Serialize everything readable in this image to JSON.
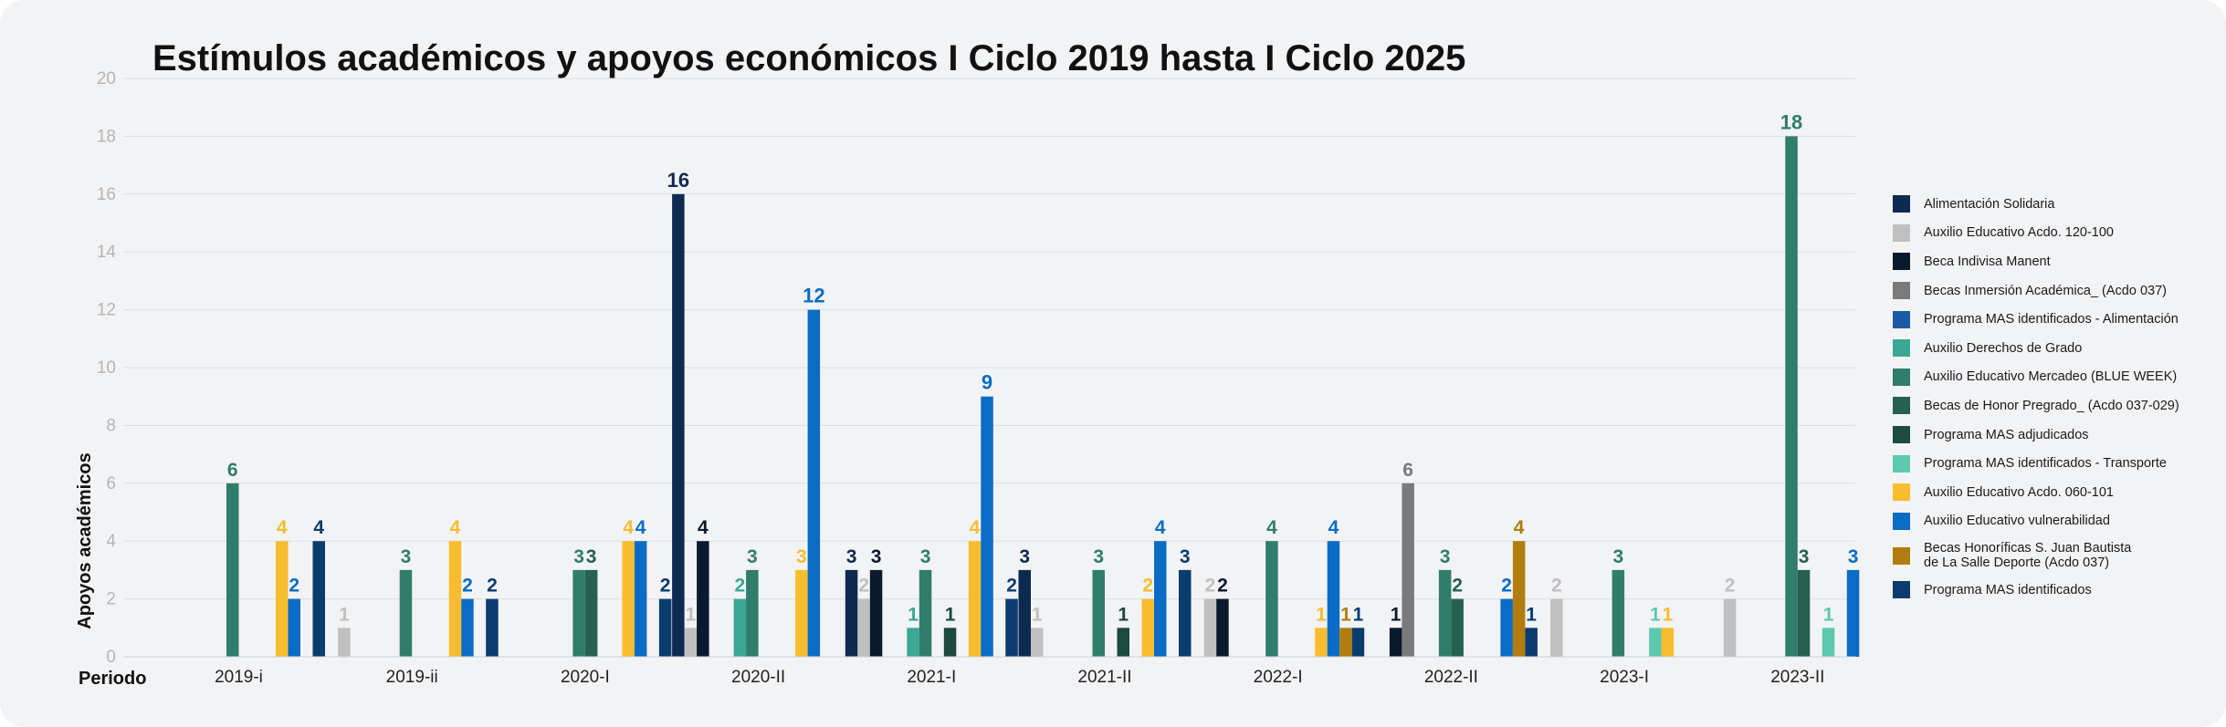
{
  "chart_data": {
    "type": "bar",
    "title": "Estímulos académicos y apoyos económicos I Ciclo 2019 hasta I Ciclo 2025",
    "xlabel": "Periodo",
    "ylabel": "Apoyos académicos",
    "ylim": [
      0,
      20
    ],
    "yticks": [
      0,
      2,
      4,
      6,
      8,
      10,
      12,
      14,
      16,
      18,
      20
    ],
    "grid": true,
    "legend_position": "right",
    "categories": [
      "2019-i",
      "2019-ii",
      "2020-I",
      "2020-II",
      "2021-I",
      "2021-II",
      "2022-I",
      "2022-II",
      "2023-I",
      "2023-II"
    ],
    "series": [
      {
        "name": "Alimentación Solidaria",
        "color": "#0e2a50",
        "values": [
          null,
          null,
          null,
          16,
          3,
          3,
          null,
          null,
          null,
          null
        ]
      },
      {
        "name": " Auxilio Educativo Acdo. 120-100",
        "color": "#c0c0c0",
        "values": [
          null,
          1,
          null,
          1,
          2,
          1,
          2,
          null,
          2,
          2
        ]
      },
      {
        "name": "Beca Indivisa Manent",
        "color": "#0a1a2e",
        "values": [
          null,
          null,
          null,
          4,
          3,
          null,
          2,
          1,
          null,
          null
        ]
      },
      {
        "name": "Becas Inmersión Académica_ (Acdo 037)",
        "color": "#7a7a7a",
        "values": [
          null,
          null,
          null,
          null,
          null,
          null,
          null,
          6,
          null,
          null
        ]
      },
      {
        "name": "Programa MAS identificados - Alimentación",
        "color": "#1d5aa5",
        "values": [
          null,
          null,
          null,
          null,
          null,
          null,
          null,
          null,
          null,
          null
        ]
      },
      {
        "name": "Auxilio Derechos de Grado",
        "color": "#3aa794",
        "values": [
          null,
          null,
          null,
          2,
          1,
          null,
          null,
          null,
          null,
          null
        ]
      },
      {
        "name": "Auxilio Educativo Mercadeo (BLUE WEEK)",
        "color": "#2f7d6a",
        "values": [
          6,
          3,
          3,
          3,
          3,
          3,
          4,
          3,
          3,
          18
        ]
      },
      {
        "name": "Becas de Honor Pregrado_ (Acdo 037-029)",
        "color": "#26604f",
        "values": [
          null,
          null,
          3,
          null,
          null,
          null,
          null,
          2,
          null,
          3
        ]
      },
      {
        "name": "Programa MAS adjudicados",
        "color": "#1c4a3c",
        "values": [
          null,
          null,
          null,
          null,
          1,
          1,
          null,
          null,
          null,
          null
        ]
      },
      {
        "name": "Programa MAS identificados - Transporte",
        "color": "#5cc9ae",
        "values": [
          null,
          null,
          null,
          null,
          null,
          null,
          null,
          null,
          1,
          1
        ]
      },
      {
        "name": " Auxilio Educativo Acdo. 060-101",
        "color": "#f8bd2e",
        "values": [
          4,
          4,
          4,
          3,
          4,
          2,
          1,
          null,
          1,
          null
        ]
      },
      {
        "name": "Auxilio Educativo vulnerabilidad",
        "color": "#0a6cc4",
        "values": [
          2,
          2,
          4,
          12,
          9,
          4,
          4,
          2,
          null,
          3
        ]
      },
      {
        "name": "Becas Honoríficas S. Juan Bautista\nde La Salle Deporte (Acdo 037)",
        "color": "#b07d0e",
        "values": [
          null,
          null,
          null,
          null,
          null,
          null,
          1,
          4,
          null,
          null
        ]
      },
      {
        "name": "Programa MAS identificados",
        "color": "#0b3c6e",
        "values": [
          4,
          2,
          2,
          null,
          2,
          3,
          1,
          1,
          null,
          null
        ]
      }
    ]
  }
}
